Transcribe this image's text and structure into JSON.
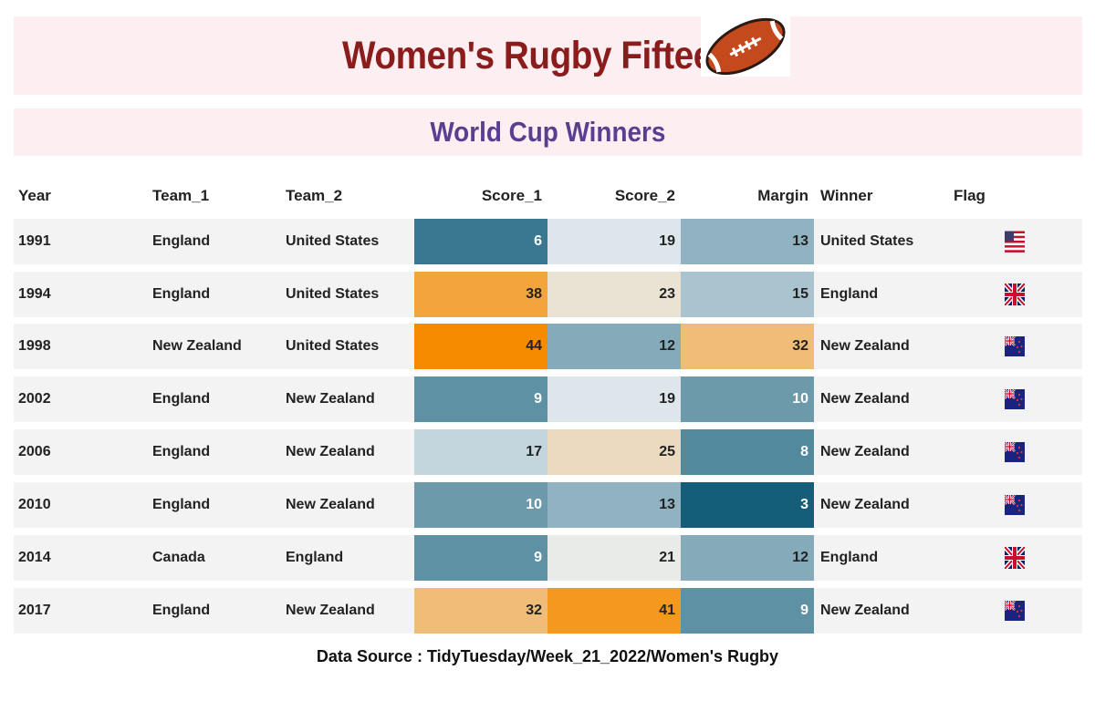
{
  "title": "Women's Rugby Fifteens",
  "subtitle": "World Cup Winners",
  "headers": {
    "year": "Year",
    "team1": "Team_1",
    "team2": "Team_2",
    "score1": "Score_1",
    "score2": "Score_2",
    "margin": "Margin",
    "winner": "Winner",
    "flag": "Flag"
  },
  "source": "Data Source : TidyTuesday/Week_21_2022/Women's Rugby",
  "colors": {
    "title": "#8b1c1c",
    "subtitle": "#5a3e8f",
    "banner": "#fdeef2",
    "high": "#f78b00",
    "low": "#155e7a",
    "mid": "#e8eff2",
    "row": "#f3f3f3"
  },
  "chart_data": {
    "type": "table",
    "columns": [
      "Year",
      "Team_1",
      "Team_2",
      "Score_1",
      "Score_2",
      "Margin",
      "Winner",
      "Flag"
    ],
    "rows": [
      {
        "year": "1991",
        "team1": "England",
        "team2": "United States",
        "score1": 6,
        "score2": 19,
        "margin": 13,
        "winner": "United States",
        "flag": "us-flag"
      },
      {
        "year": "1994",
        "team1": "England",
        "team2": "United States",
        "score1": 38,
        "score2": 23,
        "margin": 15,
        "winner": "England",
        "flag": "uk-flag"
      },
      {
        "year": "1998",
        "team1": "New Zealand",
        "team2": "United States",
        "score1": 44,
        "score2": 12,
        "margin": 32,
        "winner": "New Zealand",
        "flag": "nz-flag"
      },
      {
        "year": "2002",
        "team1": "England",
        "team2": "New Zealand",
        "score1": 9,
        "score2": 19,
        "margin": 10,
        "winner": "New Zealand",
        "flag": "nz-flag"
      },
      {
        "year": "2006",
        "team1": "England",
        "team2": "New Zealand",
        "score1": 17,
        "score2": 25,
        "margin": 8,
        "winner": "New Zealand",
        "flag": "nz-flag"
      },
      {
        "year": "2010",
        "team1": "England",
        "team2": "New Zealand",
        "score1": 10,
        "score2": 13,
        "margin": 3,
        "winner": "New Zealand",
        "flag": "nz-flag"
      },
      {
        "year": "2014",
        "team1": "Canada",
        "team2": "England",
        "score1": 9,
        "score2": 21,
        "margin": 12,
        "winner": "England",
        "flag": "uk-flag"
      },
      {
        "year": "2017",
        "team1": "England",
        "team2": "New Zealand",
        "score1": 32,
        "score2": 41,
        "margin": 9,
        "winner": "New Zealand",
        "flag": "nz-flag"
      }
    ],
    "heatmap_midpoint": 20
  }
}
